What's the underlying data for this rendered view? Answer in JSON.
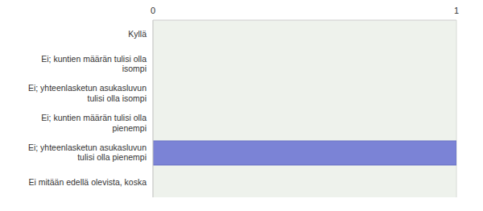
{
  "chart_data": {
    "type": "bar",
    "orientation": "horizontal",
    "categories": [
      "Kyllä",
      "Ei; kuntien määrän tulisi olla isompi",
      "Ei; yhteenlasketun asukasluvun tulisi olla isompi",
      "Ei; kuntien määrän tulisi olla pienempi",
      "Ei; yhteenlasketun asukasluvun tulisi olla pienempi",
      "Ei mitään edellä olevista, koska"
    ],
    "values": [
      0,
      0,
      0,
      0,
      1,
      0
    ],
    "color": "#7b83d6",
    "xlim": [
      0,
      1
    ],
    "xticks": [
      0,
      1
    ],
    "grid": true
  }
}
